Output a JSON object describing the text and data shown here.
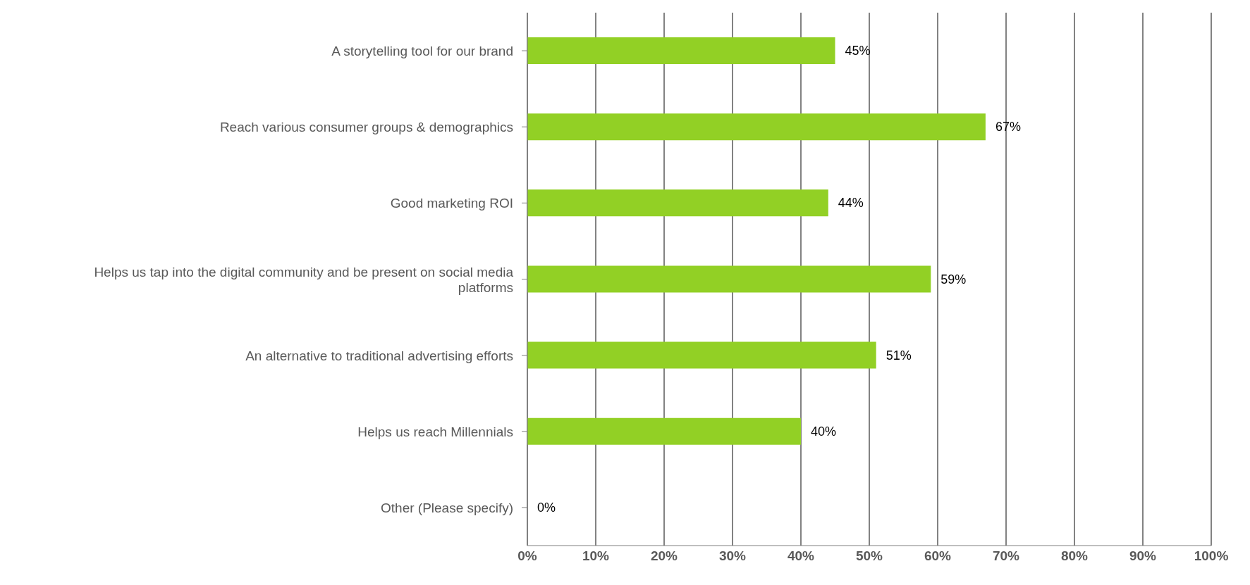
{
  "chart_data": {
    "type": "bar",
    "orientation": "horizontal",
    "categories": [
      "A storytelling tool for our brand",
      "Reach various consumer groups & demographics",
      "Good marketing ROI",
      "Helps us tap into the digital community and be present on social media platforms",
      "An alternative to traditional advertising efforts",
      "Helps us reach Millennials",
      "Other (Please specify)"
    ],
    "values": [
      45,
      67,
      44,
      59,
      51,
      40,
      0
    ],
    "value_labels": [
      "45%",
      "67%",
      "44%",
      "59%",
      "51%",
      "40%",
      "0%"
    ],
    "color": "#92d025",
    "xlim": [
      0,
      100
    ],
    "xticks": [
      {
        "value": 0,
        "label": "0%"
      },
      {
        "value": 10,
        "label": "10%"
      },
      {
        "value": 20,
        "label": "20%"
      },
      {
        "value": 30,
        "label": "30%"
      },
      {
        "value": 40,
        "label": "40%"
      },
      {
        "value": 50,
        "label": "50%"
      },
      {
        "value": 60,
        "label": "60%"
      },
      {
        "value": 70,
        "label": "70%"
      },
      {
        "value": 80,
        "label": "80%"
      },
      {
        "value": 90,
        "label": "90%"
      },
      {
        "value": 100,
        "label": "100%"
      }
    ],
    "grid": "x",
    "legend": false
  }
}
